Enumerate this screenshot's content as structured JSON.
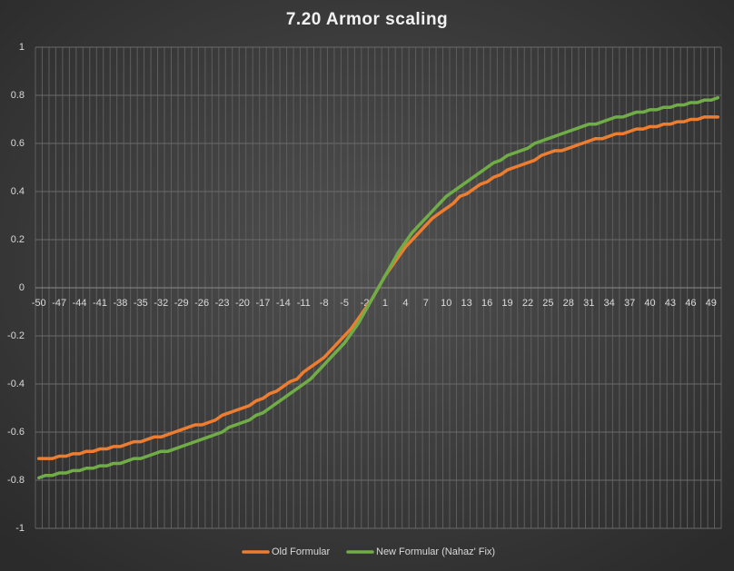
{
  "chart_data": {
    "type": "line",
    "title": "7.20 Armor scaling",
    "categories": [
      -50,
      null,
      null,
      -47,
      null,
      null,
      -44,
      null,
      null,
      -41,
      null,
      null,
      -38,
      null,
      null,
      -35,
      null,
      null,
      -32,
      null,
      null,
      -29,
      null,
      null,
      -26,
      null,
      null,
      -23,
      null,
      null,
      -20,
      null,
      null,
      -17,
      null,
      null,
      -14,
      null,
      null,
      -11,
      null,
      null,
      -8,
      null,
      null,
      -5,
      null,
      null,
      -2,
      null,
      null,
      1,
      null,
      null,
      4,
      null,
      null,
      7,
      null,
      null,
      10,
      null,
      null,
      13,
      null,
      null,
      16,
      null,
      null,
      19,
      null,
      null,
      22,
      null,
      null,
      25,
      null,
      null,
      28,
      null,
      null,
      31,
      null,
      null,
      34,
      null,
      null,
      37,
      null,
      null,
      40,
      null,
      null,
      43,
      null,
      null,
      46,
      null,
      null,
      49,
      null
    ],
    "series": [
      {
        "name": "Old Formular",
        "color": "#ed7d31",
        "values": [
          -0.71,
          -0.71,
          -0.71,
          -0.7,
          -0.7,
          -0.69,
          -0.69,
          -0.68,
          -0.68,
          -0.67,
          -0.67,
          -0.66,
          -0.66,
          -0.65,
          -0.64,
          -0.64,
          -0.63,
          -0.62,
          -0.62,
          -0.61,
          -0.6,
          -0.59,
          -0.58,
          -0.57,
          -0.57,
          -0.56,
          -0.55,
          -0.53,
          -0.52,
          -0.51,
          -0.5,
          -0.49,
          -0.47,
          -0.46,
          -0.44,
          -0.43,
          -0.41,
          -0.39,
          -0.38,
          -0.35,
          -0.33,
          -0.31,
          -0.29,
          -0.26,
          -0.23,
          -0.2,
          -0.17,
          -0.13,
          -0.09,
          -0.05,
          0,
          0.05,
          0.09,
          0.13,
          0.17,
          0.2,
          0.23,
          0.26,
          0.29,
          0.31,
          0.33,
          0.35,
          0.38,
          0.39,
          0.41,
          0.43,
          0.44,
          0.46,
          0.47,
          0.49,
          0.5,
          0.51,
          0.52,
          0.53,
          0.55,
          0.56,
          0.57,
          0.57,
          0.58,
          0.59,
          0.6,
          0.61,
          0.62,
          0.62,
          0.63,
          0.64,
          0.64,
          0.65,
          0.66,
          0.66,
          0.67,
          0.67,
          0.68,
          0.68,
          0.69,
          0.69,
          0.7,
          0.7,
          0.71,
          0.71,
          0.71
        ]
      },
      {
        "name": "New Formular (Nahaz' Fix)",
        "color": "#70ad47",
        "values": [
          -0.79,
          -0.78,
          -0.78,
          -0.77,
          -0.77,
          -0.76,
          -0.76,
          -0.75,
          -0.75,
          -0.74,
          -0.74,
          -0.73,
          -0.73,
          -0.72,
          -0.71,
          -0.71,
          -0.7,
          -0.69,
          -0.68,
          -0.68,
          -0.67,
          -0.66,
          -0.65,
          -0.64,
          -0.63,
          -0.62,
          -0.61,
          -0.6,
          -0.58,
          -0.57,
          -0.56,
          -0.55,
          -0.53,
          -0.52,
          -0.5,
          -0.48,
          -0.46,
          -0.44,
          -0.42,
          -0.4,
          -0.38,
          -0.35,
          -0.32,
          -0.29,
          -0.26,
          -0.23,
          -0.19,
          -0.15,
          -0.1,
          -0.05,
          0,
          0.05,
          0.1,
          0.15,
          0.19,
          0.23,
          0.26,
          0.29,
          0.32,
          0.35,
          0.38,
          0.4,
          0.42,
          0.44,
          0.46,
          0.48,
          0.5,
          0.52,
          0.53,
          0.55,
          0.56,
          0.57,
          0.58,
          0.6,
          0.61,
          0.62,
          0.63,
          0.64,
          0.65,
          0.66,
          0.67,
          0.68,
          0.68,
          0.69,
          0.7,
          0.71,
          0.71,
          0.72,
          0.73,
          0.73,
          0.74,
          0.74,
          0.75,
          0.75,
          0.76,
          0.76,
          0.77,
          0.77,
          0.78,
          0.78,
          0.79
        ]
      }
    ],
    "ylim": [
      -1,
      1
    ],
    "yticks": [
      -1,
      -0.8,
      -0.6,
      -0.4,
      -0.2,
      0,
      0.2,
      0.4,
      0.6,
      0.8,
      1
    ],
    "grid": true,
    "legend": "bottom"
  }
}
